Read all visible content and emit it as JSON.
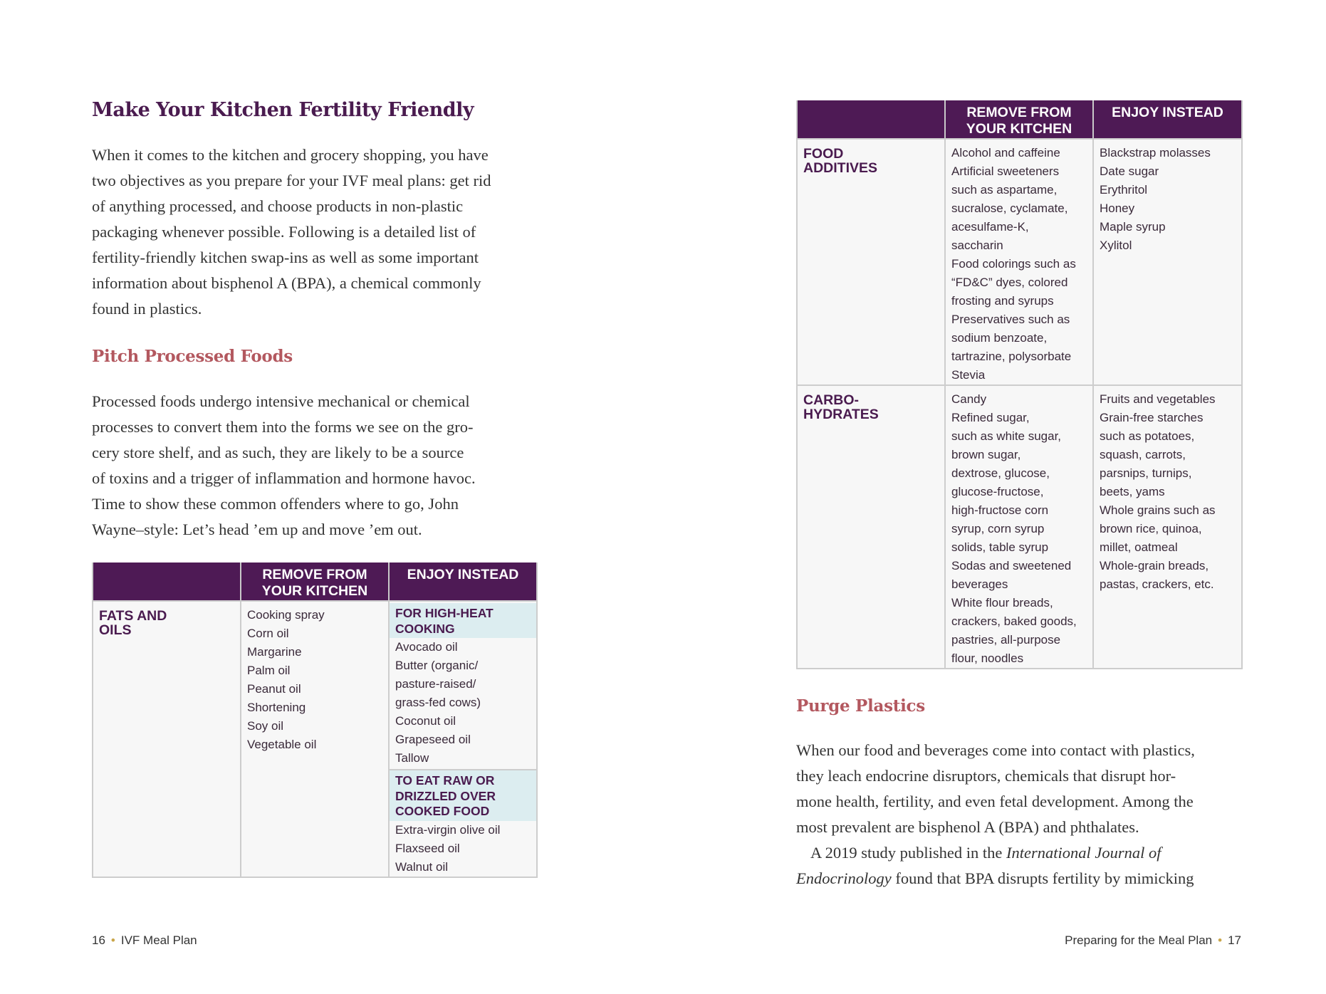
{
  "left_page": {
    "title": "Make Your Kitchen Fertility Friendly",
    "intro_lines": [
      "When it comes to the kitchen and grocery shopping, you have",
      "two objectives as you prepare for your IVF meal plans: get rid",
      "of anything processed, and choose products in non-plastic",
      "packaging whenever possible. Following is a detailed list of",
      "fertility-friendly kitchen swap-ins as well as some important",
      "information about bisphenol A (BPA), a chemical commonly",
      "found in plastics."
    ],
    "section_heading": "Pitch Processed Foods",
    "section_lines": [
      "Processed foods undergo intensive mechanical or chemical",
      "processes to convert them into the forms we see on the gro-",
      "cery store shelf, and as such, they are likely to be a source",
      "of toxins and a trigger of inflammation and hormone havoc.",
      "Time to show these common offenders where to go, John",
      "Wayne–style: Let’s head ’em up and move ’em out."
    ],
    "table": {
      "headers": [
        "",
        "REMOVE FROM YOUR KITCHEN",
        "ENJOY INSTEAD"
      ],
      "category": "FATS AND OILS",
      "remove": [
        "Cooking spray",
        "Corn oil",
        "Margarine",
        "Palm oil",
        "Peanut oil",
        "Shortening",
        "Soy oil",
        "Vegetable oil"
      ],
      "enjoy_group1_heading": "FOR HIGH-HEAT COOKING",
      "enjoy_group1": [
        "Avocado oil",
        "Butter (organic/",
        "pasture-raised/",
        "grass-fed cows)",
        "Coconut oil",
        "Grapeseed oil",
        "Tallow"
      ],
      "enjoy_group2_heading": "TO EAT RAW OR DRIZZLED OVER COOKED FOOD",
      "enjoy_group2": [
        "Extra-virgin olive oil",
        "Flaxseed oil",
        "Walnut oil"
      ]
    },
    "footer": {
      "page_number": "16",
      "book_title": "IVF Meal Plan",
      "separator": "•"
    }
  },
  "right_page": {
    "table": {
      "headers": [
        "",
        "REMOVE FROM YOUR KITCHEN",
        "ENJOY INSTEAD"
      ],
      "rows": [
        {
          "category": "FOOD ADDITIVES",
          "remove": [
            "Alcohol and caffeine",
            "Artificial sweeteners",
            "such as aspartame,",
            "sucralose, cyclamate,",
            "acesulfame-K,",
            "saccharin",
            "Food colorings such as",
            "“FD&C” dyes, colored",
            "frosting and syrups",
            "Preservatives such as",
            "sodium benzoate,",
            "tartrazine, polysorbate",
            "Stevia"
          ],
          "enjoy": [
            "Blackstrap molasses",
            "Date sugar",
            "Erythritol",
            "Honey",
            "Maple syrup",
            "Xylitol"
          ]
        },
        {
          "category": "CARBO-HYDRATES",
          "remove": [
            "Candy",
            "Refined sugar,",
            "such as white sugar,",
            "brown sugar,",
            "dextrose, glucose,",
            "glucose-fructose,",
            "high-fructose corn",
            "syrup, corn syrup",
            "solids, table syrup",
            "Sodas and sweetened",
            "beverages",
            "White flour breads,",
            "crackers, baked goods,",
            "pastries, all-purpose",
            "flour, noodles"
          ],
          "enjoy": [
            "Fruits and vegetables",
            "Grain-free starches",
            "such as potatoes,",
            "squash, carrots,",
            "parsnips, turnips,",
            "beets, yams",
            "Whole grains such as",
            "brown rice, quinoa,",
            "millet, oatmeal",
            "Whole-grain breads,",
            "pastas, crackers, etc."
          ]
        }
      ]
    },
    "section_heading": "Purge Plastics",
    "section_lines": [
      "When our food and beverages come into contact with plastics,",
      "they leach endocrine disruptors, chemicals that disrupt hor-",
      "mone health, fertility, and even fetal development. Among the",
      "most prevalent are bisphenol A (BPA) and phthalates."
    ],
    "study_line1_pre": "A 2019 study published in the ",
    "study_line1_italic": "International Journal of",
    "study_line2_italic": "Endocrinology",
    "study_line2_post": " found that BPA disrupts fertility by mimicking",
    "footer": {
      "chapter_title": "Preparing for the Meal Plan",
      "page_number": "17",
      "separator": "•"
    }
  },
  "colors": {
    "header_purple": "#4e1a55",
    "heading_purple": "#4a1b4f",
    "heading_rose": "#b3585f",
    "subheader_blue": "#dcedf0"
  }
}
